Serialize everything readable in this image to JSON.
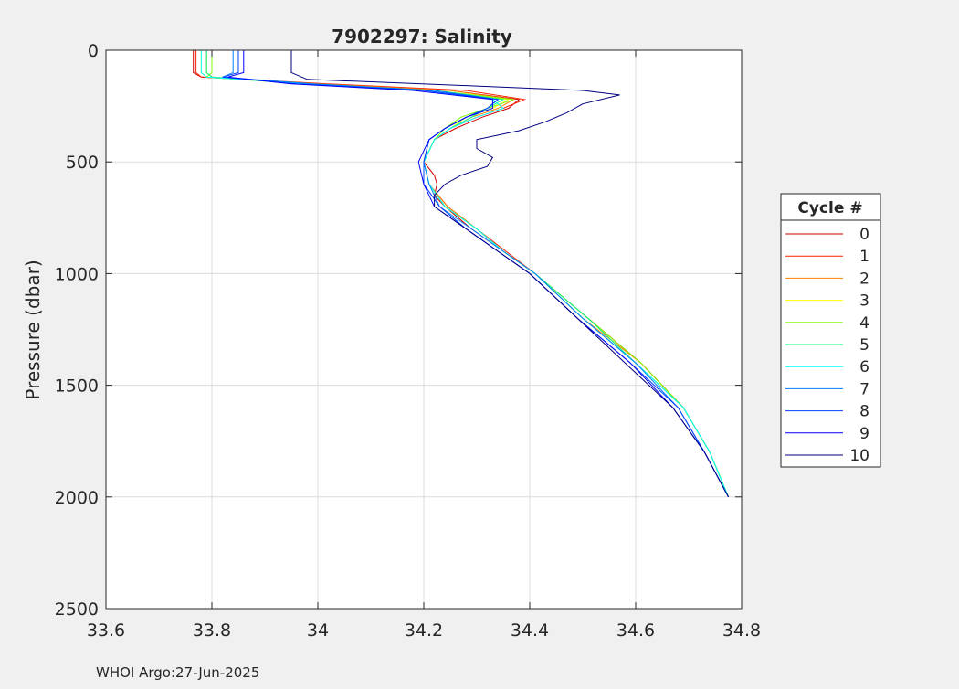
{
  "chart_data": {
    "type": "line",
    "title": "7902297:  Salinity",
    "xlabel": "",
    "ylabel": "Pressure (dbar)",
    "xlim": [
      33.6,
      34.8
    ],
    "ylim": [
      0,
      2500
    ],
    "y_reversed": true,
    "grid": true,
    "xticks": [
      "33.6",
      "33.8",
      "34",
      "34.2",
      "34.4",
      "34.6",
      "34.8"
    ],
    "xtick_values": [
      33.6,
      33.8,
      34.0,
      34.2,
      34.4,
      34.6,
      34.8
    ],
    "yticks": [
      "0",
      "500",
      "1000",
      "1500",
      "2000",
      "2500"
    ],
    "ytick_values": [
      0,
      500,
      1000,
      1500,
      2000,
      2500
    ],
    "legend_title": "Cycle #",
    "legend_position": "right",
    "series": [
      {
        "name": "0",
        "color": "#d40000",
        "pressure": [
          0,
          100,
          120,
          150,
          180,
          220,
          260,
          300,
          350,
          400,
          500,
          560,
          600,
          650,
          700,
          800,
          900,
          1000,
          1200,
          1400,
          1600,
          1800,
          2000
        ],
        "salinity": [
          33.765,
          33.765,
          33.78,
          34.0,
          34.25,
          34.38,
          34.36,
          34.31,
          34.26,
          34.22,
          34.2,
          34.22,
          34.225,
          34.22,
          34.24,
          34.29,
          34.35,
          34.41,
          34.51,
          34.61,
          34.69,
          34.74,
          34.775
        ]
      },
      {
        "name": "1",
        "color": "#ff2000",
        "pressure": [
          0,
          100,
          120,
          150,
          180,
          220,
          260,
          300,
          350,
          400,
          500,
          600,
          700,
          800,
          900,
          1000,
          1200,
          1400,
          1600,
          1800,
          2000
        ],
        "salinity": [
          33.77,
          33.77,
          33.78,
          34.02,
          34.28,
          34.39,
          34.35,
          34.3,
          34.25,
          34.22,
          34.2,
          34.21,
          34.245,
          34.3,
          34.355,
          34.41,
          34.51,
          34.61,
          34.69,
          34.74,
          34.775
        ]
      },
      {
        "name": "2",
        "color": "#ff8000",
        "pressure": [
          0,
          100,
          120,
          150,
          180,
          220,
          260,
          300,
          350,
          400,
          500,
          600,
          700,
          800,
          900,
          1000,
          1200,
          1400,
          1600,
          1800,
          2000
        ],
        "salinity": [
          33.79,
          33.79,
          33.8,
          34.0,
          34.25,
          34.37,
          34.34,
          34.29,
          34.25,
          34.22,
          34.2,
          34.21,
          34.245,
          34.3,
          34.35,
          34.41,
          34.5,
          34.61,
          34.69,
          34.74,
          34.775
        ]
      },
      {
        "name": "3",
        "color": "#ffff00",
        "pressure": [
          0,
          100,
          120,
          150,
          180,
          220,
          260,
          300,
          350,
          400,
          500,
          600,
          700,
          800,
          900,
          1000,
          1200,
          1400,
          1600,
          1800,
          2000
        ],
        "salinity": [
          33.78,
          33.78,
          33.79,
          33.98,
          34.22,
          34.36,
          34.33,
          34.28,
          34.25,
          34.22,
          34.2,
          34.21,
          34.24,
          34.3,
          34.35,
          34.41,
          34.5,
          34.6,
          34.69,
          34.74,
          34.775
        ]
      },
      {
        "name": "4",
        "color": "#80ff00",
        "pressure": [
          0,
          100,
          120,
          150,
          180,
          220,
          260,
          300,
          350,
          400,
          500,
          600,
          700,
          800,
          900,
          1000,
          1200,
          1400,
          1600,
          1800,
          2000
        ],
        "salinity": [
          33.8,
          33.8,
          33.79,
          33.97,
          34.22,
          34.37,
          34.32,
          34.27,
          34.24,
          34.22,
          34.2,
          34.21,
          34.24,
          34.3,
          34.35,
          34.41,
          34.51,
          34.61,
          34.69,
          34.74,
          34.775
        ]
      },
      {
        "name": "5",
        "color": "#00ff80",
        "pressure": [
          0,
          100,
          120,
          150,
          180,
          220,
          260,
          300,
          350,
          400,
          500,
          600,
          700,
          800,
          900,
          1000,
          1200,
          1400,
          1600,
          1800,
          2000
        ],
        "salinity": [
          33.79,
          33.79,
          33.8,
          33.99,
          34.22,
          34.35,
          34.32,
          34.29,
          34.25,
          34.22,
          34.2,
          34.21,
          34.24,
          34.3,
          34.35,
          34.41,
          34.51,
          34.6,
          34.69,
          34.74,
          34.775
        ]
      },
      {
        "name": "6",
        "color": "#00ffff",
        "pressure": [
          0,
          100,
          120,
          150,
          180,
          220,
          260,
          300,
          350,
          400,
          500,
          600,
          700,
          800,
          900,
          1000,
          1200,
          1400,
          1600,
          1800,
          2000
        ],
        "salinity": [
          33.78,
          33.78,
          33.79,
          33.98,
          34.2,
          34.33,
          34.35,
          34.3,
          34.25,
          34.22,
          34.2,
          34.21,
          34.24,
          34.3,
          34.35,
          34.41,
          34.5,
          34.6,
          34.69,
          34.74,
          34.775
        ]
      },
      {
        "name": "7",
        "color": "#0080ff",
        "pressure": [
          0,
          100,
          120,
          150,
          180,
          220,
          260,
          300,
          350,
          400,
          500,
          600,
          700,
          800,
          900,
          1000,
          1200,
          1400,
          1600,
          1800,
          2000
        ],
        "salinity": [
          33.84,
          33.84,
          33.82,
          33.99,
          34.22,
          34.34,
          34.32,
          34.28,
          34.24,
          34.21,
          34.2,
          34.21,
          34.23,
          34.29,
          34.35,
          34.41,
          34.5,
          34.6,
          34.68,
          34.73,
          34.775
        ]
      },
      {
        "name": "8",
        "color": "#0040ff",
        "pressure": [
          0,
          100,
          120,
          150,
          180,
          220,
          260,
          300,
          350,
          400,
          500,
          600,
          700,
          800,
          900,
          1000,
          1200,
          1400,
          1600,
          1800,
          2000
        ],
        "salinity": [
          33.85,
          33.85,
          33.82,
          33.96,
          34.2,
          34.34,
          34.32,
          34.28,
          34.24,
          34.21,
          34.2,
          34.2,
          34.23,
          34.28,
          34.34,
          34.4,
          34.49,
          34.59,
          34.68,
          34.73,
          34.775
        ]
      },
      {
        "name": "9",
        "color": "#0000ff",
        "pressure": [
          0,
          100,
          120,
          150,
          180,
          220,
          260,
          300,
          350,
          400,
          500,
          600,
          700,
          800,
          900,
          1000,
          1200,
          1400,
          1600,
          1800,
          2000
        ],
        "salinity": [
          33.86,
          33.86,
          33.83,
          33.95,
          34.18,
          34.33,
          34.33,
          34.28,
          34.24,
          34.21,
          34.19,
          34.2,
          34.22,
          34.28,
          34.34,
          34.4,
          34.49,
          34.59,
          34.67,
          34.73,
          34.775
        ]
      },
      {
        "name": "10",
        "color": "#000080",
        "pressure": [
          0,
          100,
          130,
          160,
          180,
          200,
          240,
          280,
          320,
          360,
          400,
          440,
          480,
          520,
          560,
          600,
          650,
          700,
          800,
          900,
          1000,
          1200,
          1400,
          1600,
          1800,
          2000
        ],
        "salinity": [
          33.95,
          33.95,
          33.98,
          34.3,
          34.5,
          34.57,
          34.5,
          34.47,
          34.43,
          34.38,
          34.3,
          34.3,
          34.33,
          34.32,
          34.27,
          34.24,
          34.22,
          34.22,
          34.28,
          34.34,
          34.4,
          34.49,
          34.58,
          34.67,
          34.73,
          34.775
        ]
      }
    ]
  },
  "footer": "WHOI Argo:27-Jun-2025"
}
